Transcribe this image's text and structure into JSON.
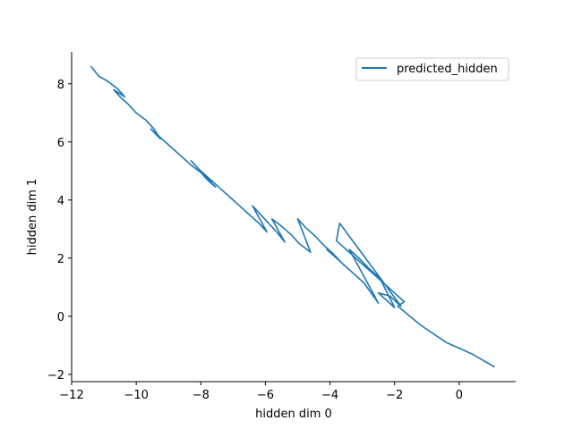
{
  "chart_data": {
    "type": "line",
    "title": "",
    "xlabel": "hidden dim 0",
    "ylabel": "hidden dim 1",
    "xlim": [
      -12.0,
      1.75
    ],
    "ylim": [
      -2.25,
      9.1
    ],
    "x_ticks": [
      -12,
      -10,
      -8,
      -6,
      -4,
      -2,
      0
    ],
    "x_tick_labels": [
      "−12",
      "−10",
      "−8",
      "−6",
      "−4",
      "−2",
      "0"
    ],
    "y_ticks": [
      -2,
      0,
      2,
      4,
      6,
      8
    ],
    "y_tick_labels": [
      "−2",
      "0",
      "2",
      "4",
      "6",
      "8"
    ],
    "grid": false,
    "legend": {
      "placement": "upper right"
    },
    "colors": {
      "series": "#1f77b4",
      "axis": "#000000"
    },
    "series": [
      {
        "name": "predicted_hidden",
        "x": [
          -11.4,
          -11.15,
          -10.9,
          -10.6,
          -10.35,
          -10.7,
          -10.5,
          -10.25,
          -10.0,
          -9.7,
          -9.45,
          -9.25,
          -9.55,
          -9.3,
          -9.05,
          -8.8,
          -8.55,
          -8.3,
          -8.0,
          -7.8,
          -7.55,
          -8.3,
          -8.05,
          -7.75,
          -7.4,
          -7.1,
          -6.8,
          -6.5,
          -6.2,
          -5.95,
          -6.4,
          -6.15,
          -5.9,
          -5.65,
          -5.4,
          -5.8,
          -5.5,
          -5.2,
          -4.95,
          -4.6,
          -5.0,
          -4.75,
          -4.45,
          -4.2,
          -3.9,
          -3.65,
          -4.1,
          -3.85,
          -3.55,
          -3.25,
          -2.95,
          -2.5,
          -3.4,
          -3.1,
          -2.8,
          -2.45,
          -2.0,
          -2.5,
          -2.15,
          -1.8,
          -3.7,
          -3.8,
          -3.5,
          -3.2,
          -2.9,
          -2.6,
          -2.3,
          -2.0,
          -1.7,
          -1.9,
          -1.2,
          -0.4,
          0.4,
          1.1
        ],
        "y": [
          8.6,
          8.25,
          8.1,
          7.85,
          7.55,
          7.8,
          7.55,
          7.3,
          7.0,
          6.75,
          6.45,
          6.1,
          6.45,
          6.2,
          5.95,
          5.7,
          5.45,
          5.2,
          4.95,
          4.7,
          4.45,
          5.35,
          5.05,
          4.75,
          4.4,
          4.1,
          3.8,
          3.5,
          3.2,
          2.9,
          3.8,
          3.5,
          3.2,
          2.9,
          2.55,
          3.35,
          3.1,
          2.8,
          2.5,
          2.2,
          3.35,
          3.05,
          2.75,
          2.45,
          2.15,
          1.85,
          2.3,
          2.05,
          1.75,
          1.45,
          1.15,
          0.45,
          2.3,
          2.0,
          1.65,
          1.3,
          0.3,
          0.8,
          0.7,
          0.35,
          3.2,
          2.6,
          2.3,
          2.0,
          1.7,
          1.4,
          1.1,
          0.8,
          0.5,
          0.35,
          -0.3,
          -0.9,
          -1.3,
          -1.75
        ]
      }
    ]
  }
}
